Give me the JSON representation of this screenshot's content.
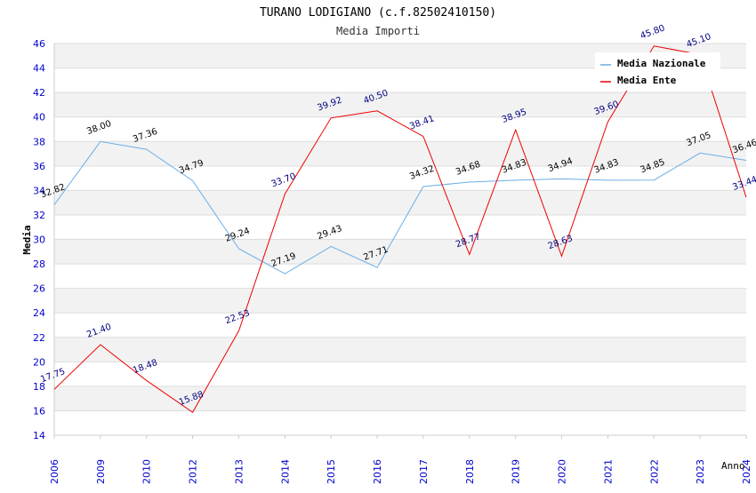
{
  "chart_data": {
    "type": "line",
    "title": "TURANO LODIGIANO (c.f.82502410150)",
    "subtitle": "Media Importi",
    "ylabel": "Media",
    "xlabel": "Anno",
    "ylim": [
      14,
      46
    ],
    "yticks": [
      14,
      16,
      18,
      20,
      22,
      24,
      26,
      28,
      30,
      32,
      34,
      36,
      38,
      40,
      42,
      44,
      46
    ],
    "grid": true,
    "legend_position": "top-right",
    "x": [
      "2006",
      "2009",
      "2010",
      "2012",
      "2013",
      "2014",
      "2015",
      "2016",
      "2017",
      "2018",
      "2019",
      "2020",
      "2021",
      "2022",
      "2023",
      "2024"
    ],
    "series": [
      {
        "name": "Media Nazionale",
        "color": "#6aaee6",
        "label_color": "#000000",
        "values": [
          32.82,
          38.0,
          37.36,
          34.79,
          29.24,
          27.19,
          29.43,
          27.71,
          34.32,
          34.68,
          34.83,
          34.94,
          34.83,
          34.85,
          37.05,
          36.46
        ],
        "labels": [
          "32.82",
          "38.00",
          "37.36",
          "34.79",
          "29.24",
          "27.19",
          "29.43",
          "27.71",
          "34.32",
          "34.68",
          "34.83",
          "34.94",
          "34.83",
          "34.85",
          "37.05",
          "36.46"
        ]
      },
      {
        "name": "Media Ente",
        "color": "#ee0000",
        "label_color": "#000080",
        "values": [
          17.75,
          21.4,
          18.48,
          15.88,
          22.53,
          33.7,
          39.92,
          40.5,
          38.41,
          28.77,
          38.95,
          28.63,
          39.6,
          45.8,
          45.1,
          33.44
        ],
        "labels": [
          "17.75",
          "21.40",
          "18.48",
          "15.88",
          "22.53",
          "33.70",
          "39.92",
          "40.50",
          "38.41",
          "28.77",
          "38.95",
          "28.63",
          "39.60",
          "45.80",
          "45.10",
          "33.44"
        ]
      }
    ]
  }
}
